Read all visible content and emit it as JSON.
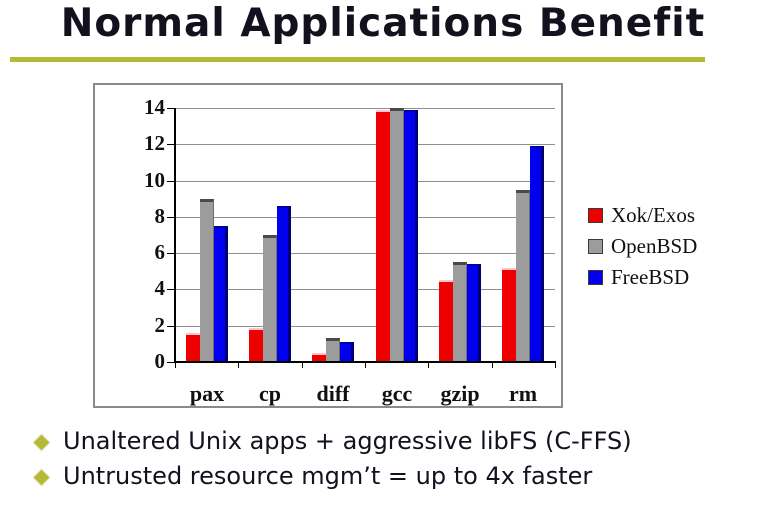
{
  "slide": {
    "title": "Normal Applications Benefit",
    "accent_color": "#b4ba35",
    "text_color": "#12121e",
    "bullets": [
      "Unaltered Unix apps + aggressive libFS (C-FFS)",
      "Untrusted resource mgm’t = up to 4x faster"
    ]
  },
  "chart_data": {
    "type": "bar",
    "title": "",
    "xlabel": "",
    "ylabel": "",
    "categories": [
      "pax",
      "cp",
      "diff",
      "gcc",
      "gzip",
      "rm"
    ],
    "series": [
      {
        "name": "Xok/Exos",
        "color": "#ee0000",
        "values": [
          1.6,
          1.9,
          0.5,
          13.9,
          4.5,
          5.2
        ]
      },
      {
        "name": "OpenBSD",
        "color": "#9c9c9c",
        "values": [
          9.0,
          7.0,
          1.3,
          14.0,
          5.5,
          9.5
        ]
      },
      {
        "name": "FreeBSD",
        "color": "#0000ee",
        "values": [
          7.5,
          8.6,
          1.1,
          13.9,
          5.4,
          11.9
        ]
      }
    ],
    "ylim": [
      0,
      14
    ],
    "yticks": [
      0,
      2,
      4,
      6,
      8,
      10,
      12,
      14
    ],
    "grid": true,
    "legend_position": "right",
    "plot_bg": "#ffffff"
  }
}
